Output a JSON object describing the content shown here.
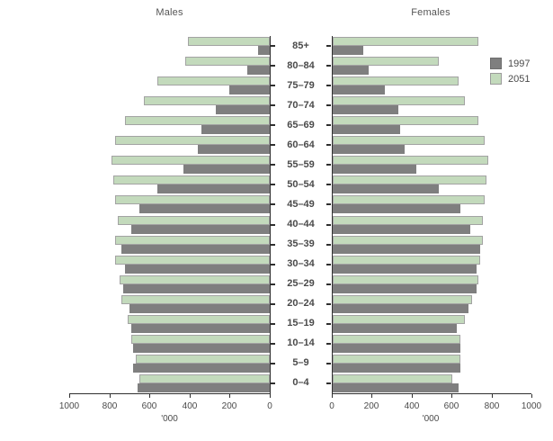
{
  "chart_data": {
    "type": "bar",
    "subtype": "population-pyramid",
    "title_left": "Males",
    "title_right": "Females",
    "unit_label": "'000",
    "legend_labels": [
      "1997",
      "2051"
    ],
    "colors": {
      "y1997": "#7f7f7f",
      "y2051": "#c3dabc",
      "axis": "#2f2f2f"
    },
    "axis": {
      "min": 0,
      "max": 1000,
      "ticks": [
        0,
        200,
        400,
        600,
        800,
        1000
      ]
    },
    "age_groups": [
      "85+",
      "80–84",
      "75–79",
      "70–74",
      "65–69",
      "60–64",
      "55–59",
      "50–54",
      "45–49",
      "40–44",
      "35–39",
      "30–34",
      "25–29",
      "20–24",
      "15–19",
      "10–14",
      "5–9",
      "0–4"
    ],
    "series": [
      {
        "name": "1997",
        "males": [
          60,
          110,
          200,
          270,
          340,
          360,
          430,
          560,
          650,
          690,
          740,
          720,
          730,
          700,
          690,
          680,
          680,
          660
        ],
        "females": [
          155,
          180,
          260,
          330,
          340,
          360,
          420,
          530,
          640,
          690,
          740,
          720,
          720,
          680,
          620,
          640,
          640,
          630
        ]
      },
      {
        "name": "2051",
        "males": [
          410,
          420,
          560,
          630,
          720,
          770,
          790,
          780,
          770,
          760,
          770,
          770,
          750,
          740,
          710,
          690,
          670,
          650
        ],
        "females": [
          730,
          530,
          630,
          660,
          730,
          760,
          780,
          770,
          760,
          750,
          750,
          740,
          730,
          700,
          660,
          640,
          640,
          600
        ]
      }
    ]
  }
}
